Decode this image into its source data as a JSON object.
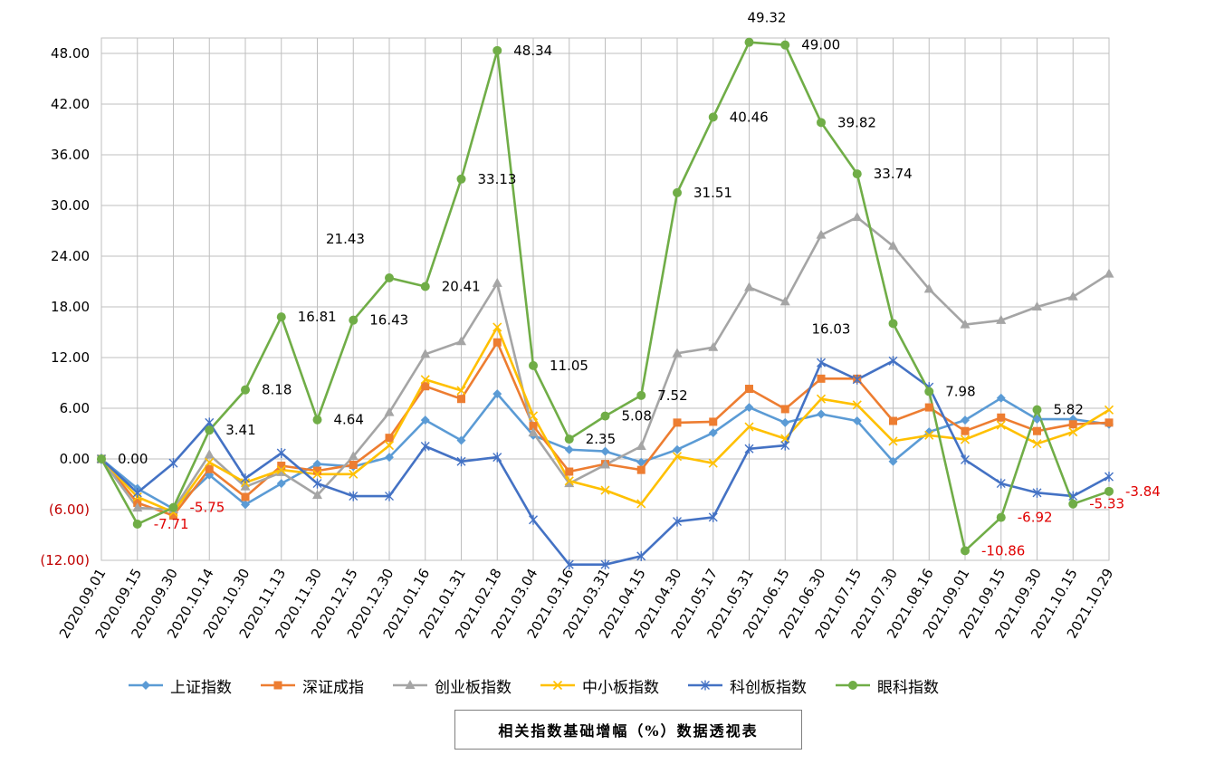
{
  "chart_data": {
    "type": "line",
    "title": "相关指数基础增幅（%）数据透视表",
    "xlabel": "",
    "ylabel": "",
    "ylim": [
      -12,
      48
    ],
    "yticks": [
      -12,
      -6,
      0,
      6,
      12,
      18,
      24,
      30,
      36,
      42,
      48
    ],
    "ytick_labels": [
      "(12.00)",
      "(6.00)",
      "0.00",
      "6.00",
      "12.00",
      "18.00",
      "24.00",
      "30.00",
      "36.00",
      "42.00",
      "48.00"
    ],
    "grid": true,
    "legend_position": "bottom",
    "categories": [
      "2020.09.01",
      "2020.09.15",
      "2020.09.30",
      "2020.10.14",
      "2020.10.30",
      "2020.11.13",
      "2020.11.30",
      "2020.12.15",
      "2020.12.30",
      "2021.01.16",
      "2021.01.31",
      "2021.02.18",
      "2021.03.04",
      "2021.03.16",
      "2021.03.31",
      "2021.04.15",
      "2021.04.30",
      "2021.05.17",
      "2021.05.31",
      "2021.06.15",
      "2021.06.30",
      "2021.07.15",
      "2021.07.30",
      "2021.08.16",
      "2021.09.01",
      "2021.09.15",
      "2021.09.30",
      "2021.10.15",
      "2021.10.29"
    ],
    "series": [
      {
        "name": "上证指数",
        "color": "#5b9bd5",
        "marker": "diamond",
        "values": [
          0,
          -3.5,
          -5.9,
          -1.9,
          -5.4,
          -2.9,
          -0.6,
          -0.9,
          0.2,
          4.6,
          2.2,
          7.7,
          2.8,
          1.1,
          0.9,
          -0.4,
          1.1,
          3.1,
          6.1,
          4.3,
          5.3,
          4.5,
          -0.3,
          3.2,
          4.6,
          7.2,
          4.7,
          4.7,
          4.1
        ]
      },
      {
        "name": "深证成指",
        "color": "#ed7d31",
        "marker": "square",
        "values": [
          0,
          -5.2,
          -6.7,
          -1.2,
          -4.5,
          -0.8,
          -1.4,
          -0.7,
          2.5,
          8.6,
          7.1,
          13.8,
          3.9,
          -1.5,
          -0.6,
          -1.3,
          4.3,
          4.4,
          8.3,
          5.9,
          9.5,
          9.5,
          4.5,
          6.1,
          3.3,
          4.9,
          3.3,
          4.1,
          4.3
        ]
      },
      {
        "name": "创业板指数",
        "color": "#a5a5a5",
        "marker": "triangle",
        "values": [
          0,
          -5.8,
          -6.0,
          0.5,
          -3.3,
          -1.6,
          -4.3,
          0.3,
          5.5,
          12.4,
          13.9,
          20.8,
          3.1,
          -2.9,
          -0.7,
          1.5,
          12.5,
          13.2,
          20.3,
          18.6,
          26.5,
          28.6,
          25.2,
          20.1,
          15.9,
          16.4,
          18.0,
          19.2,
          21.9
        ]
      },
      {
        "name": "中小板指数",
        "color": "#ffc000",
        "marker": "x",
        "values": [
          0,
          -4.5,
          -6.3,
          -0.4,
          -2.8,
          -1.3,
          -1.8,
          -1.8,
          1.6,
          9.4,
          8.1,
          15.6,
          5.1,
          -2.6,
          -3.7,
          -5.3,
          0.3,
          -0.5,
          3.8,
          2.4,
          7.1,
          6.4,
          2.1,
          2.8,
          2.3,
          4.0,
          1.8,
          3.2,
          5.8
        ]
      },
      {
        "name": "科创板指数",
        "color": "#4472c4",
        "marker": "star",
        "values": [
          0,
          -4.0,
          -0.5,
          4.3,
          -2.3,
          0.7,
          -2.9,
          -4.4,
          -4.4,
          1.5,
          -0.3,
          0.2,
          -7.2,
          -12.5,
          -12.5,
          -11.5,
          -7.4,
          -6.9,
          1.2,
          1.6,
          11.4,
          9.4,
          11.6,
          8.5,
          -0.1,
          -2.9,
          -4.0,
          -4.4,
          -2.1
        ]
      },
      {
        "name": "眼科指数",
        "color": "#70ad47",
        "marker": "circle",
        "values": [
          0,
          -7.71,
          -5.75,
          3.41,
          8.18,
          16.81,
          4.64,
          16.43,
          21.43,
          20.41,
          33.13,
          48.34,
          11.05,
          2.35,
          5.08,
          7.52,
          31.51,
          40.46,
          49.32,
          49.0,
          39.82,
          33.74,
          16.03,
          7.98,
          -10.86,
          -6.92,
          5.82,
          -5.33,
          -3.84
        ]
      }
    ],
    "data_labels": {
      "series": "眼科指数",
      "values": [
        "0.00",
        "-7.71",
        "-5.75",
        "3.41",
        "8.18",
        "16.81",
        "4.64",
        "16.43",
        "21.43",
        "20.41",
        "33.13",
        "48.34",
        "11.05",
        "2.35",
        "5.08",
        "7.52",
        "31.51",
        "40.46",
        "49.32",
        "49.00",
        "39.82",
        "33.74",
        "16.03",
        "7.98",
        "-10.86",
        "-6.92",
        "5.82",
        "-5.33",
        "-3.84"
      ]
    }
  }
}
